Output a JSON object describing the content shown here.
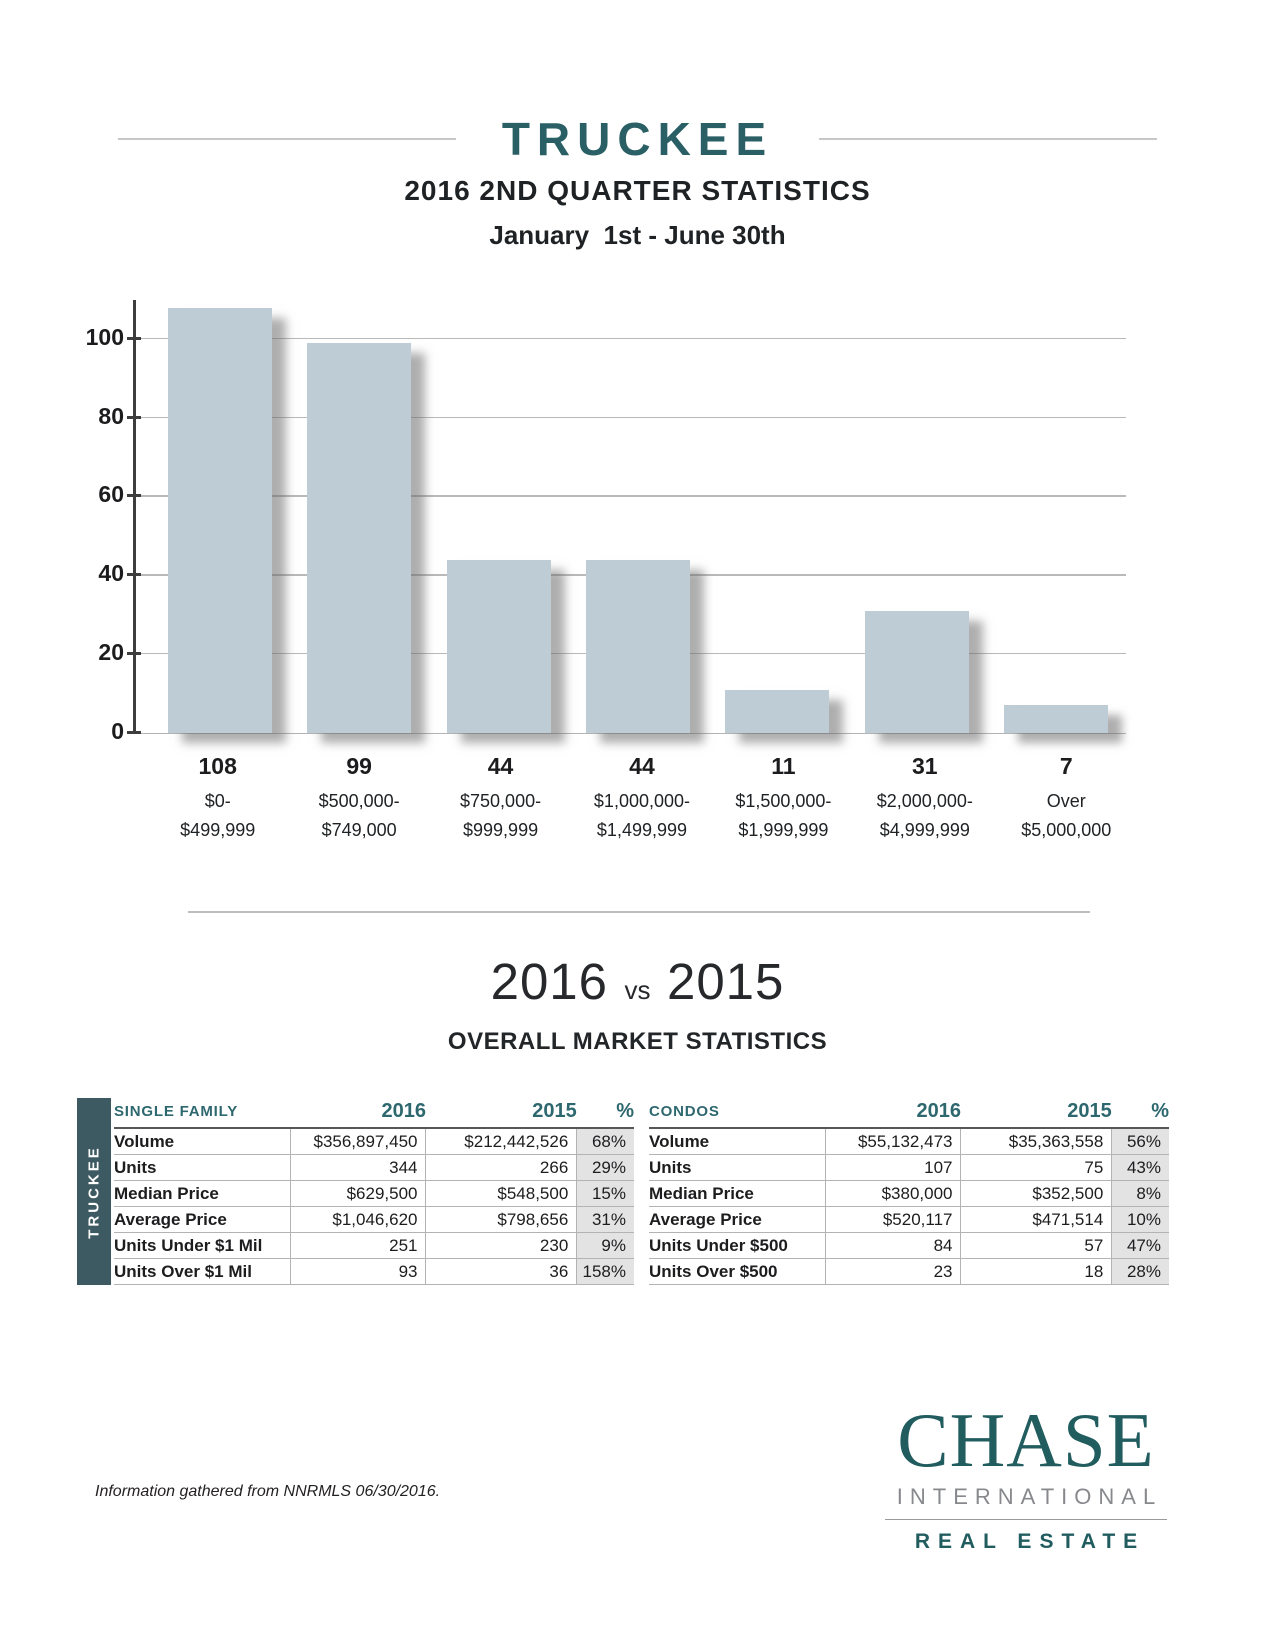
{
  "header": {
    "title": "TRUCKEE",
    "subtitle": "2016 2ND QUARTER STATISTICS",
    "date_range": "January  1st - June 30th"
  },
  "chart_data": {
    "type": "bar",
    "title": "2016 2ND QUARTER STATISTICS",
    "xlabel": "",
    "ylabel": "",
    "ylim": [
      0,
      110
    ],
    "yticks": [
      0,
      20,
      40,
      60,
      80,
      100
    ],
    "grid": true,
    "legend": false,
    "bar_color": "#bdccd5",
    "values": [
      108,
      99,
      44,
      44,
      11,
      31,
      7
    ],
    "categories": [
      {
        "count": "108",
        "range_line1": "$0-",
        "range_line2": "$499,999"
      },
      {
        "count": "99",
        "range_line1": "$500,000-",
        "range_line2": "$749,000"
      },
      {
        "count": "44",
        "range_line1": "$750,000-",
        "range_line2": "$999,999"
      },
      {
        "count": "44",
        "range_line1": "$1,000,000-",
        "range_line2": "$1,499,999"
      },
      {
        "count": "11",
        "range_line1": "$1,500,000-",
        "range_line2": "$1,999,999"
      },
      {
        "count": "31",
        "range_line1": "$2,000,000-",
        "range_line2": "$4,999,999"
      },
      {
        "count": "7",
        "range_line1": "Over",
        "range_line2": "$5,000,000"
      }
    ]
  },
  "comparison": {
    "year_left": "2016",
    "vs_label": "vs",
    "year_right": "2015",
    "subheading": "OVERALL MARKET STATISTICS",
    "region_label": "TRUCKEE",
    "columns": [
      "2016",
      "2015",
      "%"
    ],
    "tables": [
      {
        "name": "SINGLE FAMILY",
        "rows": [
          {
            "label": "Volume",
            "y2016": "$356,897,450",
            "y2015": "$212,442,526",
            "pct": "68%"
          },
          {
            "label": "Units",
            "y2016": "344",
            "y2015": "266",
            "pct": "29%"
          },
          {
            "label": "Median Price",
            "y2016": "$629,500",
            "y2015": "$548,500",
            "pct": "15%"
          },
          {
            "label": "Average Price",
            "y2016": "$1,046,620",
            "y2015": "$798,656",
            "pct": "31%"
          },
          {
            "label": "Units Under $1 Mil",
            "y2016": "251",
            "y2015": "230",
            "pct": "9%"
          },
          {
            "label": "Units Over $1 Mil",
            "y2016": "93",
            "y2015": "36",
            "pct": "158%"
          }
        ]
      },
      {
        "name": "CONDOS",
        "rows": [
          {
            "label": "Volume",
            "y2016": "$55,132,473",
            "y2015": "$35,363,558",
            "pct": "56%"
          },
          {
            "label": "Units",
            "y2016": "107",
            "y2015": "75",
            "pct": "43%"
          },
          {
            "label": "Median Price",
            "y2016": "$380,000",
            "y2015": "$352,500",
            "pct": "8%"
          },
          {
            "label": "Average Price",
            "y2016": "$520,117",
            "y2015": "$471,514",
            "pct": "10%"
          },
          {
            "label": "Units Under $500",
            "y2016": "84",
            "y2015": "57",
            "pct": "47%"
          },
          {
            "label": "Units Over $500",
            "y2016": "23",
            "y2015": "18",
            "pct": "28%"
          }
        ]
      }
    ]
  },
  "footer": {
    "note": "Information gathered from NNRMLS 06/30/2016.",
    "logo": {
      "name": "CHASE",
      "line2": "INTERNATIONAL",
      "line3": "REAL ESTATE"
    }
  },
  "colors": {
    "brand_teal": "#2a5f66",
    "logo_teal": "#215c5f",
    "bar_fill": "#bdccd5",
    "region_tab_bg": "#3d5961",
    "pct_column_bg": "#e3e3e4"
  }
}
